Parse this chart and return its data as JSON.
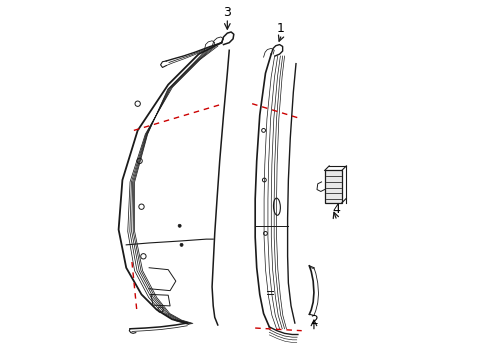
{
  "background_color": "#ffffff",
  "line_color": "#1a1a1a",
  "red_dash_color": "#cc0000",
  "label_color": "#000000",
  "figsize": [
    4.89,
    3.6
  ],
  "dpi": 100
}
